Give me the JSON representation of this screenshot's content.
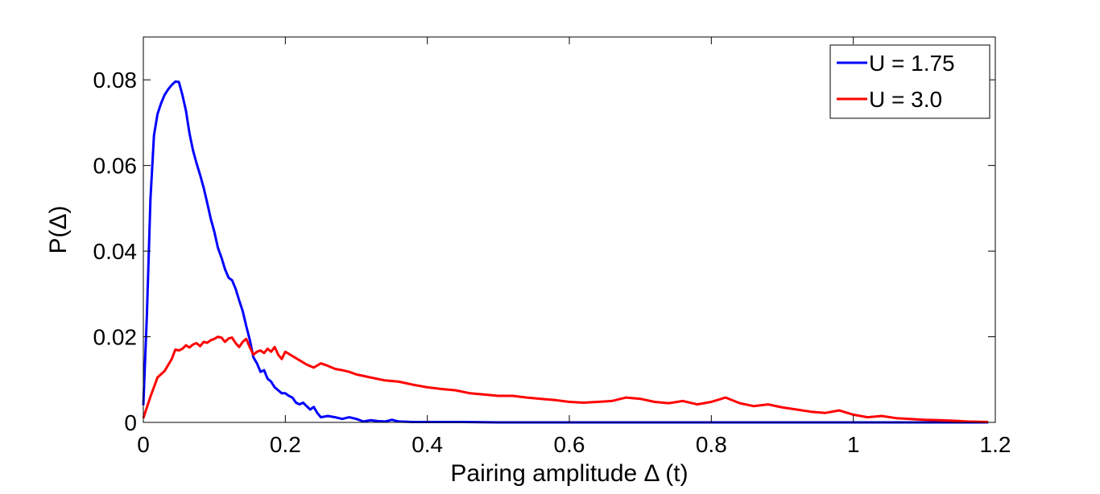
{
  "chart_data": {
    "type": "line",
    "title": "",
    "xlabel": "Pairing amplitude Δ (t)",
    "ylabel": "P(Δ)",
    "xlim": [
      0,
      1.2
    ],
    "ylim": [
      0,
      0.09
    ],
    "xticks": [
      0,
      0.2,
      0.4,
      0.6,
      0.8,
      1,
      1.2
    ],
    "xtick_labels": [
      "0",
      "0.2",
      "0.4",
      "0.6",
      "0.8",
      "1",
      "1.2"
    ],
    "yticks": [
      0,
      0.02,
      0.04,
      0.06,
      0.08
    ],
    "ytick_labels": [
      "0",
      "0.02",
      "0.04",
      "0.06",
      "0.08"
    ],
    "grid": false,
    "legend_position": "top-right",
    "series": [
      {
        "name": "U = 1.75",
        "color": "#0000ff",
        "x": [
          0,
          0.005,
          0.01,
          0.015,
          0.02,
          0.025,
          0.03,
          0.035,
          0.04,
          0.045,
          0.05,
          0.055,
          0.06,
          0.065,
          0.07,
          0.075,
          0.08,
          0.085,
          0.09,
          0.095,
          0.1,
          0.105,
          0.11,
          0.115,
          0.12,
          0.125,
          0.13,
          0.135,
          0.14,
          0.145,
          0.15,
          0.155,
          0.16,
          0.165,
          0.17,
          0.175,
          0.18,
          0.185,
          0.19,
          0.195,
          0.2,
          0.205,
          0.21,
          0.215,
          0.22,
          0.225,
          0.23,
          0.235,
          0.24,
          0.245,
          0.25,
          0.26,
          0.27,
          0.28,
          0.29,
          0.3,
          0.31,
          0.32,
          0.33,
          0.34,
          0.35,
          0.36,
          0.38,
          0.4,
          0.45,
          0.5,
          0.6,
          0.7,
          0.8,
          0.9,
          1.0,
          1.1,
          1.19
        ],
        "y": [
          0.004,
          0.025,
          0.052,
          0.067,
          0.072,
          0.0745,
          0.0765,
          0.0778,
          0.0788,
          0.0796,
          0.0795,
          0.0765,
          0.0728,
          0.0675,
          0.0635,
          0.0605,
          0.0578,
          0.0548,
          0.0512,
          0.0475,
          0.0445,
          0.0408,
          0.0385,
          0.0358,
          0.0338,
          0.0332,
          0.0312,
          0.0285,
          0.026,
          0.0225,
          0.0192,
          0.0152,
          0.0138,
          0.0118,
          0.0122,
          0.0102,
          0.0095,
          0.0082,
          0.0075,
          0.0068,
          0.0068,
          0.0062,
          0.0058,
          0.0046,
          0.0042,
          0.0046,
          0.0038,
          0.003,
          0.0036,
          0.0022,
          0.0012,
          0.0015,
          0.0012,
          0.0008,
          0.0012,
          0.0008,
          0.0002,
          0.0005,
          0.0003,
          0.0002,
          0.0006,
          0.0002,
          0.0001,
          0.0001,
          0.0001,
          0.0,
          0.0,
          0.0,
          0.0,
          0.0,
          0.0,
          0.0,
          0.0
        ]
      },
      {
        "name": "U = 3.0",
        "color": "#ff0000",
        "x": [
          0,
          0.01,
          0.02,
          0.03,
          0.04,
          0.045,
          0.05,
          0.055,
          0.06,
          0.065,
          0.07,
          0.075,
          0.08,
          0.085,
          0.09,
          0.095,
          0.1,
          0.105,
          0.11,
          0.115,
          0.12,
          0.125,
          0.13,
          0.135,
          0.14,
          0.145,
          0.15,
          0.155,
          0.16,
          0.165,
          0.17,
          0.175,
          0.18,
          0.185,
          0.19,
          0.195,
          0.2,
          0.21,
          0.22,
          0.23,
          0.24,
          0.25,
          0.26,
          0.27,
          0.28,
          0.29,
          0.3,
          0.32,
          0.34,
          0.36,
          0.38,
          0.4,
          0.42,
          0.44,
          0.46,
          0.48,
          0.5,
          0.52,
          0.54,
          0.56,
          0.58,
          0.6,
          0.62,
          0.64,
          0.66,
          0.68,
          0.7,
          0.72,
          0.74,
          0.76,
          0.78,
          0.8,
          0.82,
          0.84,
          0.86,
          0.88,
          0.9,
          0.92,
          0.94,
          0.96,
          0.98,
          1.0,
          1.02,
          1.04,
          1.06,
          1.08,
          1.1,
          1.12,
          1.14,
          1.16,
          1.19
        ],
        "y": [
          0.001,
          0.006,
          0.0105,
          0.012,
          0.0148,
          0.017,
          0.0168,
          0.0172,
          0.018,
          0.0175,
          0.0182,
          0.0185,
          0.0178,
          0.0188,
          0.0186,
          0.0192,
          0.0195,
          0.02,
          0.0198,
          0.0188,
          0.0196,
          0.0198,
          0.0185,
          0.0176,
          0.0188,
          0.0195,
          0.0175,
          0.0158,
          0.0165,
          0.0168,
          0.0162,
          0.0172,
          0.0165,
          0.0176,
          0.0158,
          0.0148,
          0.0165,
          0.0155,
          0.0145,
          0.0135,
          0.0128,
          0.0138,
          0.0132,
          0.0125,
          0.0122,
          0.0118,
          0.0112,
          0.0105,
          0.0098,
          0.0095,
          0.0088,
          0.0082,
          0.0078,
          0.0075,
          0.0068,
          0.0065,
          0.0062,
          0.0062,
          0.0058,
          0.0055,
          0.0052,
          0.0048,
          0.0046,
          0.0048,
          0.005,
          0.0058,
          0.0055,
          0.0048,
          0.0045,
          0.005,
          0.0042,
          0.0048,
          0.0058,
          0.0045,
          0.0038,
          0.0042,
          0.0035,
          0.003,
          0.0025,
          0.0022,
          0.0028,
          0.0018,
          0.0012,
          0.0015,
          0.001,
          0.0008,
          0.0006,
          0.0005,
          0.0004,
          0.0002,
          0.0001
        ]
      }
    ]
  }
}
